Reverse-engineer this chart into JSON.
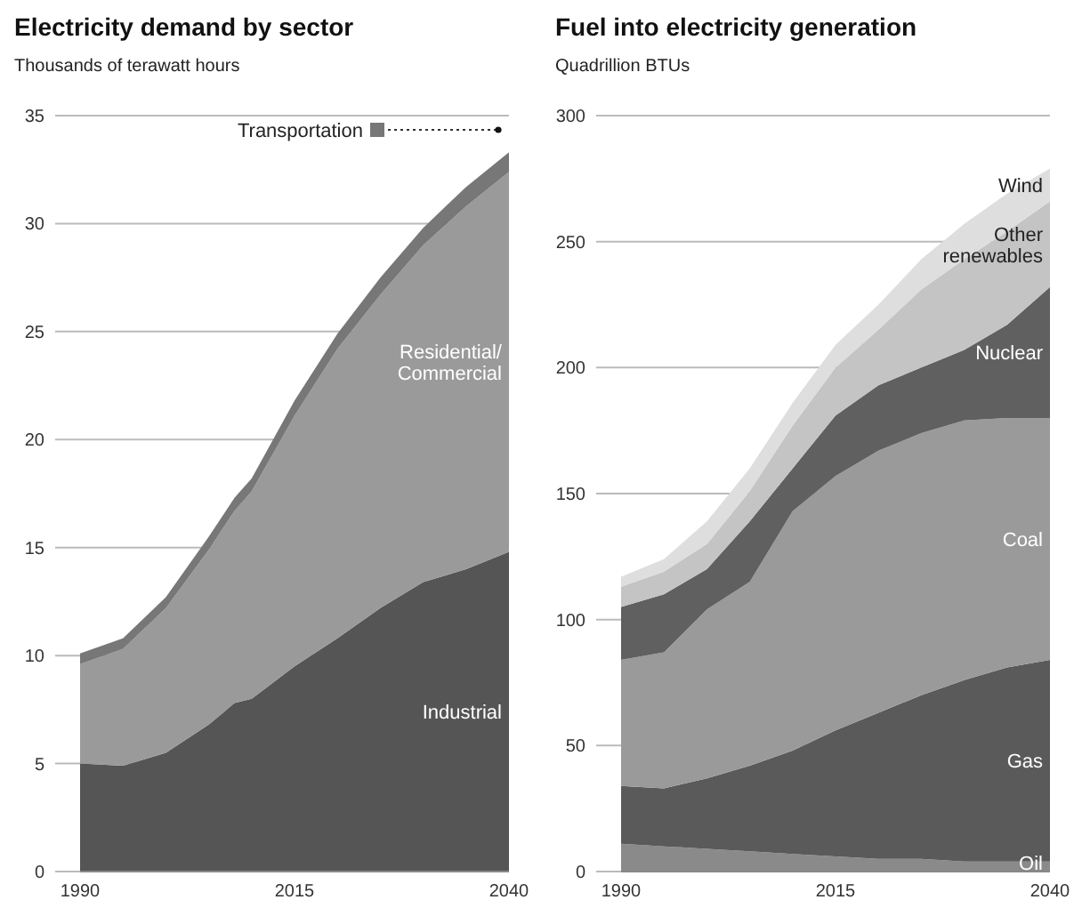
{
  "chart_data": [
    {
      "type": "area",
      "stacked": true,
      "title": "Electricity demand by sector",
      "subtitle": "Thousands of terawatt hours",
      "x": [
        1990,
        1995,
        2000,
        2005,
        2008,
        2010,
        2015,
        2020,
        2025,
        2030,
        2035,
        2040
      ],
      "xlim": [
        1990,
        2040
      ],
      "xticks": [
        1990,
        2015,
        2040
      ],
      "ylim": [
        0,
        35
      ],
      "yticks": [
        0,
        5,
        10,
        15,
        20,
        25,
        30,
        35
      ],
      "grid": "y",
      "legend": "top right",
      "series": [
        {
          "name": "Industrial",
          "color": "#555555",
          "values": [
            5.0,
            4.9,
            5.5,
            6.8,
            7.8,
            8.0,
            9.5,
            10.8,
            12.2,
            13.4,
            14.0,
            14.8
          ]
        },
        {
          "name": "Residential/ Commercial",
          "color": "#9a9a9a",
          "values": [
            4.6,
            5.4,
            6.7,
            8.1,
            8.9,
            9.6,
            11.6,
            13.4,
            14.5,
            15.6,
            16.8,
            17.6
          ]
        },
        {
          "name": "Transportation",
          "color": "#777777",
          "values": [
            0.5,
            0.5,
            0.5,
            0.6,
            0.6,
            0.6,
            0.7,
            0.7,
            0.8,
            0.8,
            0.9,
            0.9
          ]
        }
      ]
    },
    {
      "type": "area",
      "stacked": true,
      "title": "Fuel into electricity generation",
      "subtitle": "Quadrillion BTUs",
      "x": [
        1990,
        1995,
        2000,
        2005,
        2010,
        2015,
        2020,
        2025,
        2030,
        2035,
        2040
      ],
      "xlim": [
        1990,
        2040
      ],
      "xticks": [
        1990,
        2015,
        2040
      ],
      "ylim": [
        0,
        300
      ],
      "yticks": [
        0,
        50,
        100,
        150,
        200,
        250,
        300
      ],
      "grid": "y",
      "series": [
        {
          "name": "Oil",
          "color": "#8a8a8a",
          "values": [
            11,
            10,
            9,
            8,
            7,
            6,
            5,
            5,
            4,
            4,
            4
          ]
        },
        {
          "name": "Gas",
          "color": "#5a5a5a",
          "values": [
            23,
            23,
            28,
            34,
            41,
            50,
            58,
            65,
            72,
            77,
            80
          ]
        },
        {
          "name": "Coal",
          "color": "#9a9a9a",
          "values": [
            50,
            54,
            67,
            73,
            95,
            101,
            104,
            104,
            103,
            99,
            96
          ]
        },
        {
          "name": "Nuclear",
          "color": "#606060",
          "values": [
            21,
            23,
            16,
            24,
            17,
            24,
            26,
            26,
            28,
            37,
            52
          ]
        },
        {
          "name": "Other renewables",
          "color": "#c4c4c4",
          "values": [
            8,
            9,
            10,
            12,
            17,
            19,
            22,
            31,
            36,
            37,
            34
          ]
        },
        {
          "name": "Wind",
          "color": "#dedede",
          "values": [
            4,
            5,
            9,
            9,
            9,
            9,
            10,
            12,
            14,
            15,
            13
          ]
        }
      ]
    }
  ]
}
